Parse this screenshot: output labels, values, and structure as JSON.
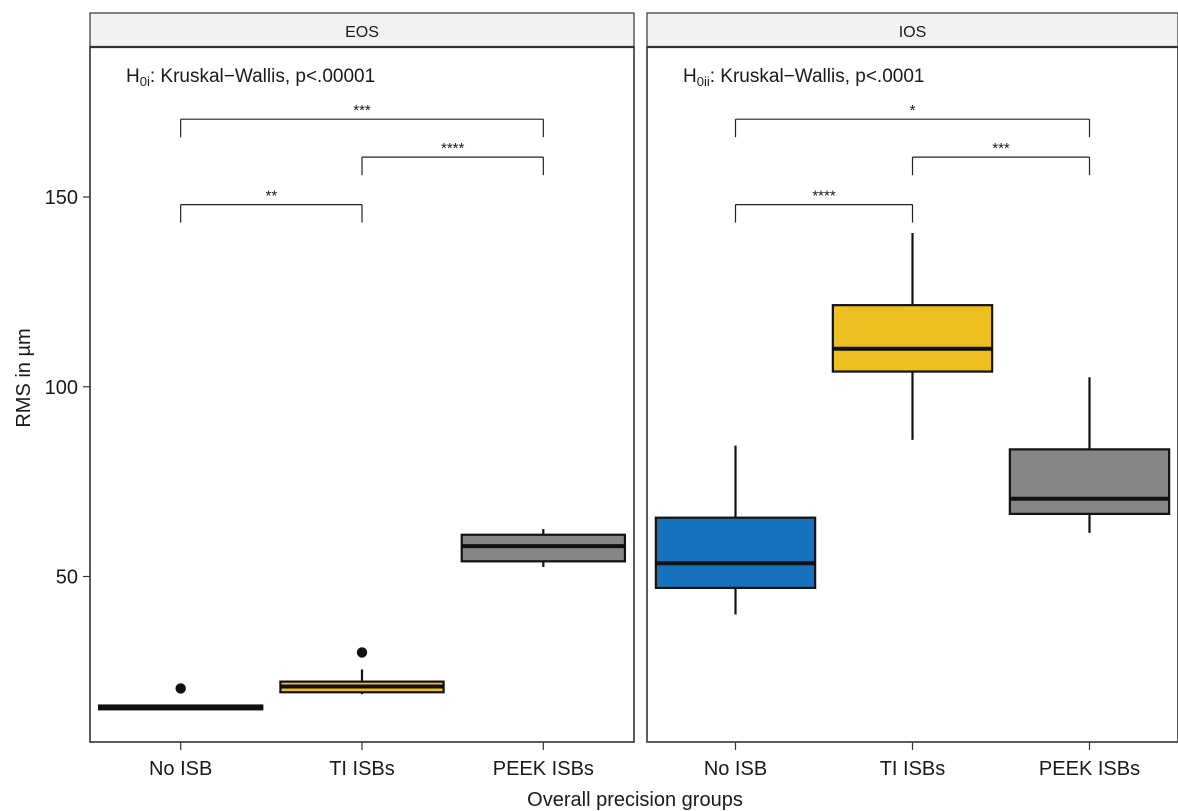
{
  "chart_data": {
    "type": "boxplot",
    "xlabel": "Overall precision groups",
    "ylabel": "RMS in µm",
    "yticks": [
      50,
      100,
      150
    ],
    "ylim": [
      10,
      190
    ],
    "categories": [
      "No ISB",
      "TI ISBs",
      "PEEK ISBs"
    ],
    "colors": {
      "No ISB": "#1672BE",
      "TI ISBs": "#EDBF21",
      "PEEK ISBs": "#868686"
    },
    "facets": [
      {
        "name": "EOS",
        "annotation": {
          "prefix": "H",
          "sub": "0i",
          "text": ": Kruskal−Wallis, p<.00001"
        },
        "boxes": [
          {
            "category": "No ISB",
            "q1": 15.0,
            "median": 15.5,
            "q3": 16.0,
            "whisker_low": 15.0,
            "whisker_high": 16.0,
            "outliers": [
              20.5
            ]
          },
          {
            "category": "TI ISBs",
            "q1": 19.5,
            "median": 21.0,
            "q3": 22.3,
            "whisker_low": 19.0,
            "whisker_high": 25.5,
            "outliers": [
              30.0
            ]
          },
          {
            "category": "PEEK ISBs",
            "q1": 54.0,
            "median": 58.0,
            "q3": 61.0,
            "whisker_low": 52.5,
            "whisker_high": 62.5,
            "outliers": []
          }
        ],
        "comparisons": [
          {
            "from": "No ISB",
            "to": "TI ISBs",
            "label": "**",
            "level": 148
          },
          {
            "from": "TI ISBs",
            "to": "PEEK ISBs",
            "label": "****",
            "level": 160.5
          },
          {
            "from": "No ISB",
            "to": "PEEK ISBs",
            "label": "***",
            "level": 170.5
          }
        ]
      },
      {
        "name": "IOS",
        "annotation": {
          "prefix": "H",
          "sub": "0ii",
          "text": ": Kruskal−Wallis, p<.0001"
        },
        "boxes": [
          {
            "category": "No ISB",
            "q1": 47.0,
            "median": 53.5,
            "q3": 65.5,
            "whisker_low": 40.0,
            "whisker_high": 84.5,
            "outliers": []
          },
          {
            "category": "TI ISBs",
            "q1": 104.0,
            "median": 110.0,
            "q3": 121.5,
            "whisker_low": 86.0,
            "whisker_high": 140.5,
            "outliers": []
          },
          {
            "category": "PEEK ISBs",
            "q1": 66.5,
            "median": 70.5,
            "q3": 83.5,
            "whisker_low": 61.5,
            "whisker_high": 102.5,
            "outliers": []
          }
        ],
        "comparisons": [
          {
            "from": "No ISB",
            "to": "TI ISBs",
            "label": "****",
            "level": 148
          },
          {
            "from": "TI ISBs",
            "to": "PEEK ISBs",
            "label": "***",
            "level": 160.5
          },
          {
            "from": "No ISB",
            "to": "PEEK ISBs",
            "label": "*",
            "level": 170.5
          }
        ]
      }
    ]
  }
}
